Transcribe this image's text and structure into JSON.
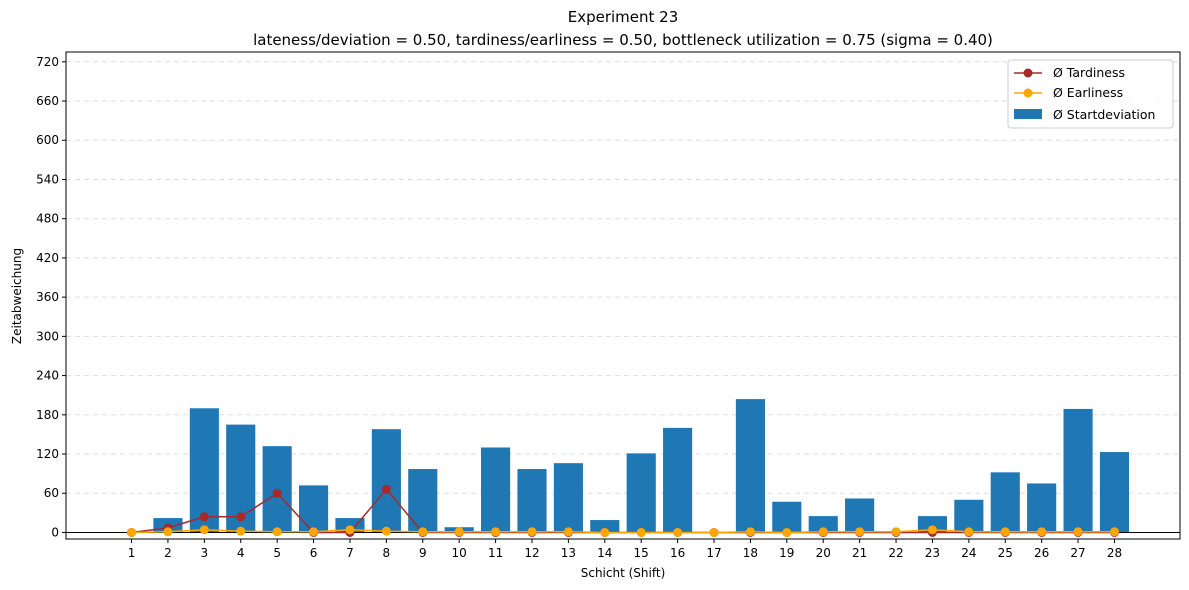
{
  "chart_data": {
    "type": "bar",
    "title": "Experiment 23",
    "subtitle": "lateness/deviation = 0.50, tardiness/earliness = 0.50, bottleneck utilization = 0.75 (sigma = 0.40)",
    "xlabel": "Schicht (Shift)",
    "ylabel": "Zeitabweichung",
    "ylim": [
      -10,
      735
    ],
    "yticks": [
      0,
      60,
      120,
      180,
      240,
      300,
      360,
      420,
      480,
      540,
      600,
      660,
      720
    ],
    "grid": "y-dashed",
    "legend_position": "top-right",
    "categories": [
      "1",
      "2",
      "3",
      "4",
      "5",
      "6",
      "7",
      "8",
      "9",
      "10",
      "11",
      "12",
      "13",
      "14",
      "15",
      "16",
      "17",
      "18",
      "19",
      "20",
      "21",
      "22",
      "23",
      "24",
      "25",
      "26",
      "27",
      "28"
    ],
    "bars": {
      "name": "Ø Startdeviation",
      "color": "#1f77b4",
      "values": [
        0,
        22,
        190,
        165,
        132,
        72,
        22,
        158,
        97,
        8,
        130,
        97,
        106,
        19,
        121,
        160,
        0,
        204,
        47,
        25,
        52,
        0,
        25,
        50,
        92,
        75,
        189,
        123
      ]
    },
    "lines": [
      {
        "name": "Ø Tardiness",
        "color": "#a52a2a",
        "values": [
          0,
          7,
          24,
          24,
          60,
          0,
          0,
          66,
          0,
          0,
          0,
          0,
          0,
          0,
          0,
          0,
          0,
          0,
          0,
          0,
          0,
          0,
          0,
          0,
          0,
          0,
          0,
          0
        ]
      },
      {
        "name": "Ø Earliness",
        "color": "#ffa500",
        "values": [
          0,
          1,
          4,
          2,
          1,
          1,
          4,
          2,
          1,
          1,
          1,
          1,
          1,
          0,
          0,
          0,
          0,
          1,
          0,
          1,
          1,
          1,
          4,
          1,
          1,
          1,
          1,
          1
        ]
      }
    ]
  }
}
